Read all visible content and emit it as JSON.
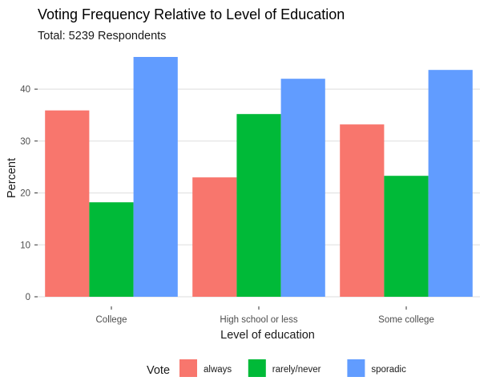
{
  "chart_data": {
    "type": "bar",
    "title": "Voting Frequency Relative to Level of Education",
    "subtitle": "Total: 5239 Respondents",
    "xlabel": "Level of education",
    "ylabel": "Percent",
    "categories": [
      "College",
      "High school or less",
      "Some college"
    ],
    "series": [
      {
        "name": "always",
        "color": "#F8766D",
        "values": [
          35.9,
          23.0,
          33.2
        ]
      },
      {
        "name": "rarely/never",
        "color": "#00BA38",
        "values": [
          18.2,
          35.2,
          23.3
        ]
      },
      {
        "name": "sporadic",
        "color": "#619CFF",
        "values": [
          46.2,
          42.0,
          43.7
        ]
      }
    ],
    "ylim": [
      0,
      46.2
    ],
    "yticks": [
      0,
      10,
      20,
      30,
      40
    ],
    "grid": true,
    "legend_title": "Vote",
    "legend_position": "bottom"
  }
}
